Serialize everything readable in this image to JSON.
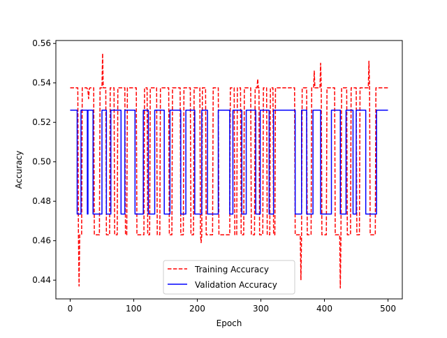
{
  "chart_data": {
    "type": "line",
    "title": "",
    "xlabel": "Epoch",
    "ylabel": "Accuracy",
    "xlim": [
      -22.5,
      522.5
    ],
    "ylim": [
      0.4305,
      0.5615
    ],
    "xticks": [
      0,
      100,
      200,
      300,
      400,
      500
    ],
    "yticks": [
      0.44,
      0.46,
      0.48,
      0.5,
      0.52,
      0.54,
      0.56
    ],
    "ytick_labels": [
      "0.44",
      "0.46",
      "0.48",
      "0.50",
      "0.52",
      "0.54",
      "0.56"
    ],
    "grid": false,
    "legend_position": "lower center",
    "series": [
      {
        "name": "Training Accuracy",
        "color": "#ff0000",
        "style": "dashed",
        "points": [
          [
            0,
            0.5375
          ],
          [
            11,
            0.5375
          ],
          [
            12,
            0.5375
          ],
          [
            13,
            0.463
          ],
          [
            14,
            0.437
          ],
          [
            15,
            0.463
          ],
          [
            18,
            0.463
          ],
          [
            19,
            0.5375
          ],
          [
            25,
            0.5375
          ],
          [
            26,
            0.5375
          ],
          [
            27,
            0.537
          ],
          [
            28,
            0.536
          ],
          [
            29,
            0.532
          ],
          [
            30,
            0.537
          ],
          [
            31,
            0.5375
          ],
          [
            36,
            0.5375
          ],
          [
            37,
            0.5375
          ],
          [
            38,
            0.463
          ],
          [
            45,
            0.463
          ],
          [
            46,
            0.463
          ],
          [
            47,
            0.5375
          ],
          [
            50,
            0.5375
          ],
          [
            51,
            0.555
          ],
          [
            52,
            0.5375
          ],
          [
            55,
            0.5375
          ],
          [
            56,
            0.5375
          ],
          [
            57,
            0.463
          ],
          [
            62,
            0.463
          ],
          [
            63,
            0.5375
          ],
          [
            68,
            0.5375
          ],
          [
            69,
            0.5375
          ],
          [
            70,
            0.463
          ],
          [
            74,
            0.463
          ],
          [
            75,
            0.5375
          ],
          [
            85,
            0.5375
          ],
          [
            86,
            0.5375
          ],
          [
            87,
            0.463
          ],
          [
            89,
            0.463
          ],
          [
            90,
            0.5375
          ],
          [
            103,
            0.5375
          ],
          [
            104,
            0.5375
          ],
          [
            105,
            0.463
          ],
          [
            116,
            0.463
          ],
          [
            117,
            0.5375
          ],
          [
            120,
            0.5375
          ],
          [
            121,
            0.5375
          ],
          [
            122,
            0.463
          ],
          [
            125,
            0.463
          ],
          [
            126,
            0.5375
          ],
          [
            135,
            0.5375
          ],
          [
            136,
            0.5375
          ],
          [
            137,
            0.463
          ],
          [
            141,
            0.463
          ],
          [
            142,
            0.5375
          ],
          [
            154,
            0.5375
          ],
          [
            155,
            0.5375
          ],
          [
            156,
            0.463
          ],
          [
            160,
            0.463
          ],
          [
            161,
            0.5375
          ],
          [
            172,
            0.5375
          ],
          [
            173,
            0.5375
          ],
          [
            174,
            0.463
          ],
          [
            178,
            0.463
          ],
          [
            179,
            0.5375
          ],
          [
            188,
            0.5375
          ],
          [
            189,
            0.5375
          ],
          [
            190,
            0.463
          ],
          [
            194,
            0.463
          ],
          [
            195,
            0.5375
          ],
          [
            203,
            0.5375
          ],
          [
            204,
            0.5375
          ],
          [
            205,
            0.463
          ],
          [
            206,
            0.459
          ],
          [
            207,
            0.463
          ],
          [
            208,
            0.5375
          ],
          [
            212,
            0.5375
          ],
          [
            213,
            0.5375
          ],
          [
            214,
            0.463
          ],
          [
            223,
            0.463
          ],
          [
            224,
            0.463
          ],
          [
            225,
            0.5375
          ],
          [
            232,
            0.5375
          ],
          [
            233,
            0.5375
          ],
          [
            234,
            0.463
          ],
          [
            250,
            0.463
          ],
          [
            251,
            0.463
          ],
          [
            252,
            0.5375
          ],
          [
            257,
            0.5375
          ],
          [
            258,
            0.5375
          ],
          [
            259,
            0.463
          ],
          [
            262,
            0.463
          ],
          [
            263,
            0.5375
          ],
          [
            267,
            0.5375
          ],
          [
            268,
            0.5375
          ],
          [
            269,
            0.463
          ],
          [
            273,
            0.463
          ],
          [
            274,
            0.5375
          ],
          [
            283,
            0.5375
          ],
          [
            284,
            0.5375
          ],
          [
            285,
            0.463
          ],
          [
            290,
            0.463
          ],
          [
            291,
            0.5375
          ],
          [
            294,
            0.5375
          ],
          [
            295,
            0.542
          ],
          [
            296,
            0.5375
          ],
          [
            297,
            0.5375
          ],
          [
            298,
            0.463
          ],
          [
            303,
            0.463
          ],
          [
            304,
            0.5375
          ],
          [
            308,
            0.5375
          ],
          [
            309,
            0.5375
          ],
          [
            310,
            0.463
          ],
          [
            314,
            0.463
          ],
          [
            315,
            0.5375
          ],
          [
            318,
            0.5375
          ],
          [
            319,
            0.5375
          ],
          [
            320,
            0.463
          ],
          [
            322,
            0.463
          ],
          [
            323,
            0.5375
          ],
          [
            352,
            0.5375
          ],
          [
            353,
            0.5375
          ],
          [
            354,
            0.463
          ],
          [
            362,
            0.463
          ],
          [
            363,
            0.44
          ],
          [
            364,
            0.463
          ],
          [
            365,
            0.5375
          ],
          [
            371,
            0.5375
          ],
          [
            372,
            0.5375
          ],
          [
            373,
            0.463
          ],
          [
            379,
            0.463
          ],
          [
            380,
            0.5375
          ],
          [
            383,
            0.5375
          ],
          [
            384,
            0.546
          ],
          [
            385,
            0.5375
          ],
          [
            392,
            0.5375
          ],
          [
            393,
            0.5375
          ],
          [
            394,
            0.55
          ],
          [
            395,
            0.5375
          ],
          [
            396,
            0.463
          ],
          [
            402,
            0.463
          ],
          [
            403,
            0.463
          ],
          [
            404,
            0.5375
          ],
          [
            415,
            0.5375
          ],
          [
            416,
            0.5375
          ],
          [
            417,
            0.463
          ],
          [
            424,
            0.463
          ],
          [
            425,
            0.436
          ],
          [
            426,
            0.463
          ],
          [
            427,
            0.5375
          ],
          [
            434,
            0.5375
          ],
          [
            435,
            0.5375
          ],
          [
            436,
            0.463
          ],
          [
            441,
            0.463
          ],
          [
            442,
            0.5375
          ],
          [
            449,
            0.5375
          ],
          [
            450,
            0.5375
          ],
          [
            451,
            0.463
          ],
          [
            455,
            0.463
          ],
          [
            456,
            0.5375
          ],
          [
            469,
            0.5375
          ],
          [
            470,
            0.551
          ],
          [
            471,
            0.5375
          ],
          [
            472,
            0.463
          ],
          [
            479,
            0.463
          ],
          [
            480,
            0.463
          ],
          [
            481,
            0.5375
          ],
          [
            500,
            0.5375
          ]
        ]
      },
      {
        "name": "Validation Accuracy",
        "color": "#0000ff",
        "style": "solid",
        "points": [
          [
            0,
            0.5262
          ],
          [
            11,
            0.5262
          ],
          [
            11,
            0.4735
          ],
          [
            17,
            0.4735
          ],
          [
            17,
            0.5262
          ],
          [
            27,
            0.5262
          ],
          [
            27,
            0.4735
          ],
          [
            28,
            0.4735
          ],
          [
            28,
            0.5262
          ],
          [
            36,
            0.5262
          ],
          [
            36,
            0.4735
          ],
          [
            50,
            0.4735
          ],
          [
            50,
            0.5262
          ],
          [
            57,
            0.5262
          ],
          [
            57,
            0.4735
          ],
          [
            64,
            0.4735
          ],
          [
            64,
            0.5262
          ],
          [
            80,
            0.5262
          ],
          [
            80,
            0.4735
          ],
          [
            86,
            0.4735
          ],
          [
            86,
            0.5262
          ],
          [
            102,
            0.5262
          ],
          [
            102,
            0.4735
          ],
          [
            115,
            0.4735
          ],
          [
            115,
            0.5262
          ],
          [
            123,
            0.5262
          ],
          [
            123,
            0.4735
          ],
          [
            133,
            0.4735
          ],
          [
            133,
            0.5262
          ],
          [
            148,
            0.5262
          ],
          [
            148,
            0.4735
          ],
          [
            157,
            0.4735
          ],
          [
            157,
            0.5262
          ],
          [
            174,
            0.5262
          ],
          [
            174,
            0.4735
          ],
          [
            182,
            0.4735
          ],
          [
            182,
            0.5262
          ],
          [
            196,
            0.5262
          ],
          [
            196,
            0.4735
          ],
          [
            207,
            0.4735
          ],
          [
            207,
            0.5262
          ],
          [
            216,
            0.5262
          ],
          [
            216,
            0.4735
          ],
          [
            233,
            0.4735
          ],
          [
            233,
            0.5262
          ],
          [
            251,
            0.5262
          ],
          [
            251,
            0.4735
          ],
          [
            256,
            0.4735
          ],
          [
            256,
            0.5262
          ],
          [
            270,
            0.5262
          ],
          [
            270,
            0.4735
          ],
          [
            277,
            0.4735
          ],
          [
            277,
            0.5262
          ],
          [
            292,
            0.5262
          ],
          [
            292,
            0.4735
          ],
          [
            299,
            0.4735
          ],
          [
            299,
            0.5262
          ],
          [
            313,
            0.5262
          ],
          [
            313,
            0.4735
          ],
          [
            320,
            0.4735
          ],
          [
            320,
            0.5262
          ],
          [
            354,
            0.5262
          ],
          [
            354,
            0.4735
          ],
          [
            364,
            0.4735
          ],
          [
            364,
            0.5262
          ],
          [
            372,
            0.5262
          ],
          [
            372,
            0.4735
          ],
          [
            382,
            0.4735
          ],
          [
            382,
            0.5262
          ],
          [
            394,
            0.5262
          ],
          [
            394,
            0.4735
          ],
          [
            411,
            0.4735
          ],
          [
            411,
            0.5262
          ],
          [
            425,
            0.5262
          ],
          [
            425,
            0.4735
          ],
          [
            434,
            0.4735
          ],
          [
            434,
            0.5262
          ],
          [
            445,
            0.5262
          ],
          [
            445,
            0.4735
          ],
          [
            450,
            0.4735
          ],
          [
            450,
            0.5262
          ],
          [
            465,
            0.5262
          ],
          [
            465,
            0.4735
          ],
          [
            482,
            0.4735
          ],
          [
            482,
            0.5262
          ],
          [
            500,
            0.5262
          ]
        ]
      }
    ]
  }
}
